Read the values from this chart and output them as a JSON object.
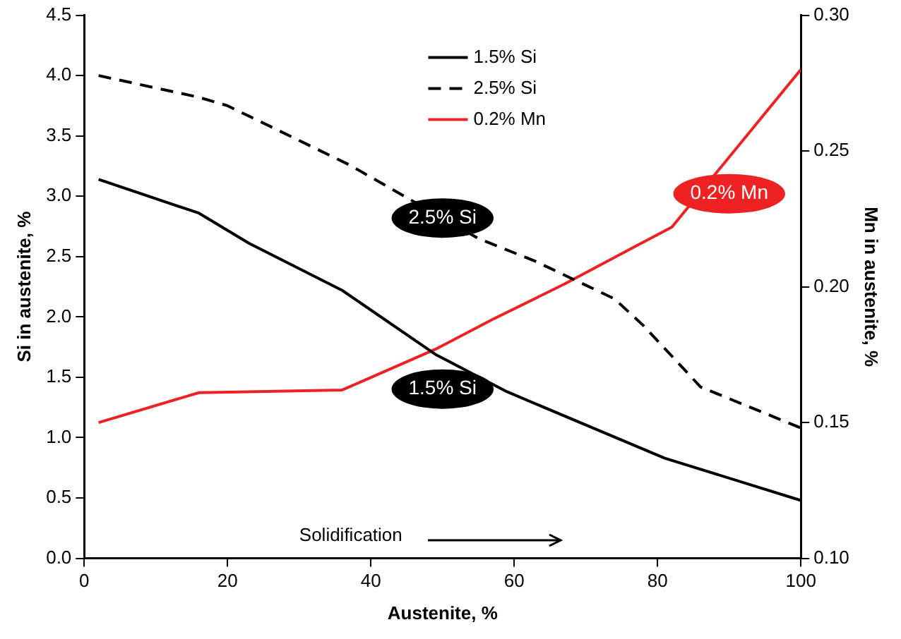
{
  "chart_data": {
    "type": "line",
    "xlabel": "Austenite, %",
    "ylabel": "Si in austenite, %",
    "y2label": "Mn in austenite, %",
    "xlim": [
      0,
      100
    ],
    "xticks": [
      0,
      20,
      40,
      60,
      80,
      100
    ],
    "ylim": [
      0,
      4.5
    ],
    "yticks": [
      {
        "value": 0,
        "label": "0.0"
      },
      {
        "value": 0.5,
        "label": "0.5"
      },
      {
        "value": 1,
        "label": "1.0"
      },
      {
        "value": 1.5,
        "label": "1.5"
      },
      {
        "value": 2,
        "label": "2.0"
      },
      {
        "value": 2.5,
        "label": "2.5"
      },
      {
        "value": 3,
        "label": "3.0"
      },
      {
        "value": 3.5,
        "label": "3.5"
      },
      {
        "value": 4,
        "label": "4.0"
      },
      {
        "value": 4.5,
        "label": "4.5"
      }
    ],
    "y2lim": [
      0.1,
      0.3
    ],
    "y2ticks": [
      {
        "value": 0.1,
        "label": "0.10"
      },
      {
        "value": 0.15,
        "label": "0.15"
      },
      {
        "value": 0.2,
        "label": "0.20"
      },
      {
        "value": 0.25,
        "label": "0.25"
      },
      {
        "value": 0.3,
        "label": "0.30"
      }
    ],
    "series": [
      {
        "name": "1.5% Si",
        "color": "#000000",
        "line_style": "solid",
        "x": [
          2,
          16,
          23,
          36,
          49,
          59,
          81,
          100
        ],
        "values": [
          3.14,
          2.86,
          2.61,
          2.22,
          1.69,
          1.38,
          0.83,
          0.48
        ]
      },
      {
        "name": "2.5% Si",
        "color": "#000000",
        "line_style": "dashed",
        "x": [
          2,
          16,
          20,
          37,
          55,
          63,
          74,
          78,
          86,
          100
        ],
        "values": [
          4.0,
          3.82,
          3.75,
          3.26,
          2.65,
          2.46,
          2.15,
          1.93,
          1.42,
          1.08
        ]
      },
      {
        "name": "0.2% Mn",
        "color": "#ee2222",
        "line_style": "solid",
        "axis": "y2",
        "x": [
          2,
          16,
          36,
          49,
          57,
          67,
          77,
          82,
          100
        ],
        "values": [
          0.15,
          0.161,
          0.162,
          0.177,
          0.188,
          0.201,
          0.215,
          0.222,
          0.28
        ]
      }
    ],
    "annotations": [
      "1.5% Si",
      "2.5% Si",
      "0.2% Mn",
      "Solidification"
    ],
    "legend": "top",
    "grid": false,
    "marker": "none"
  }
}
